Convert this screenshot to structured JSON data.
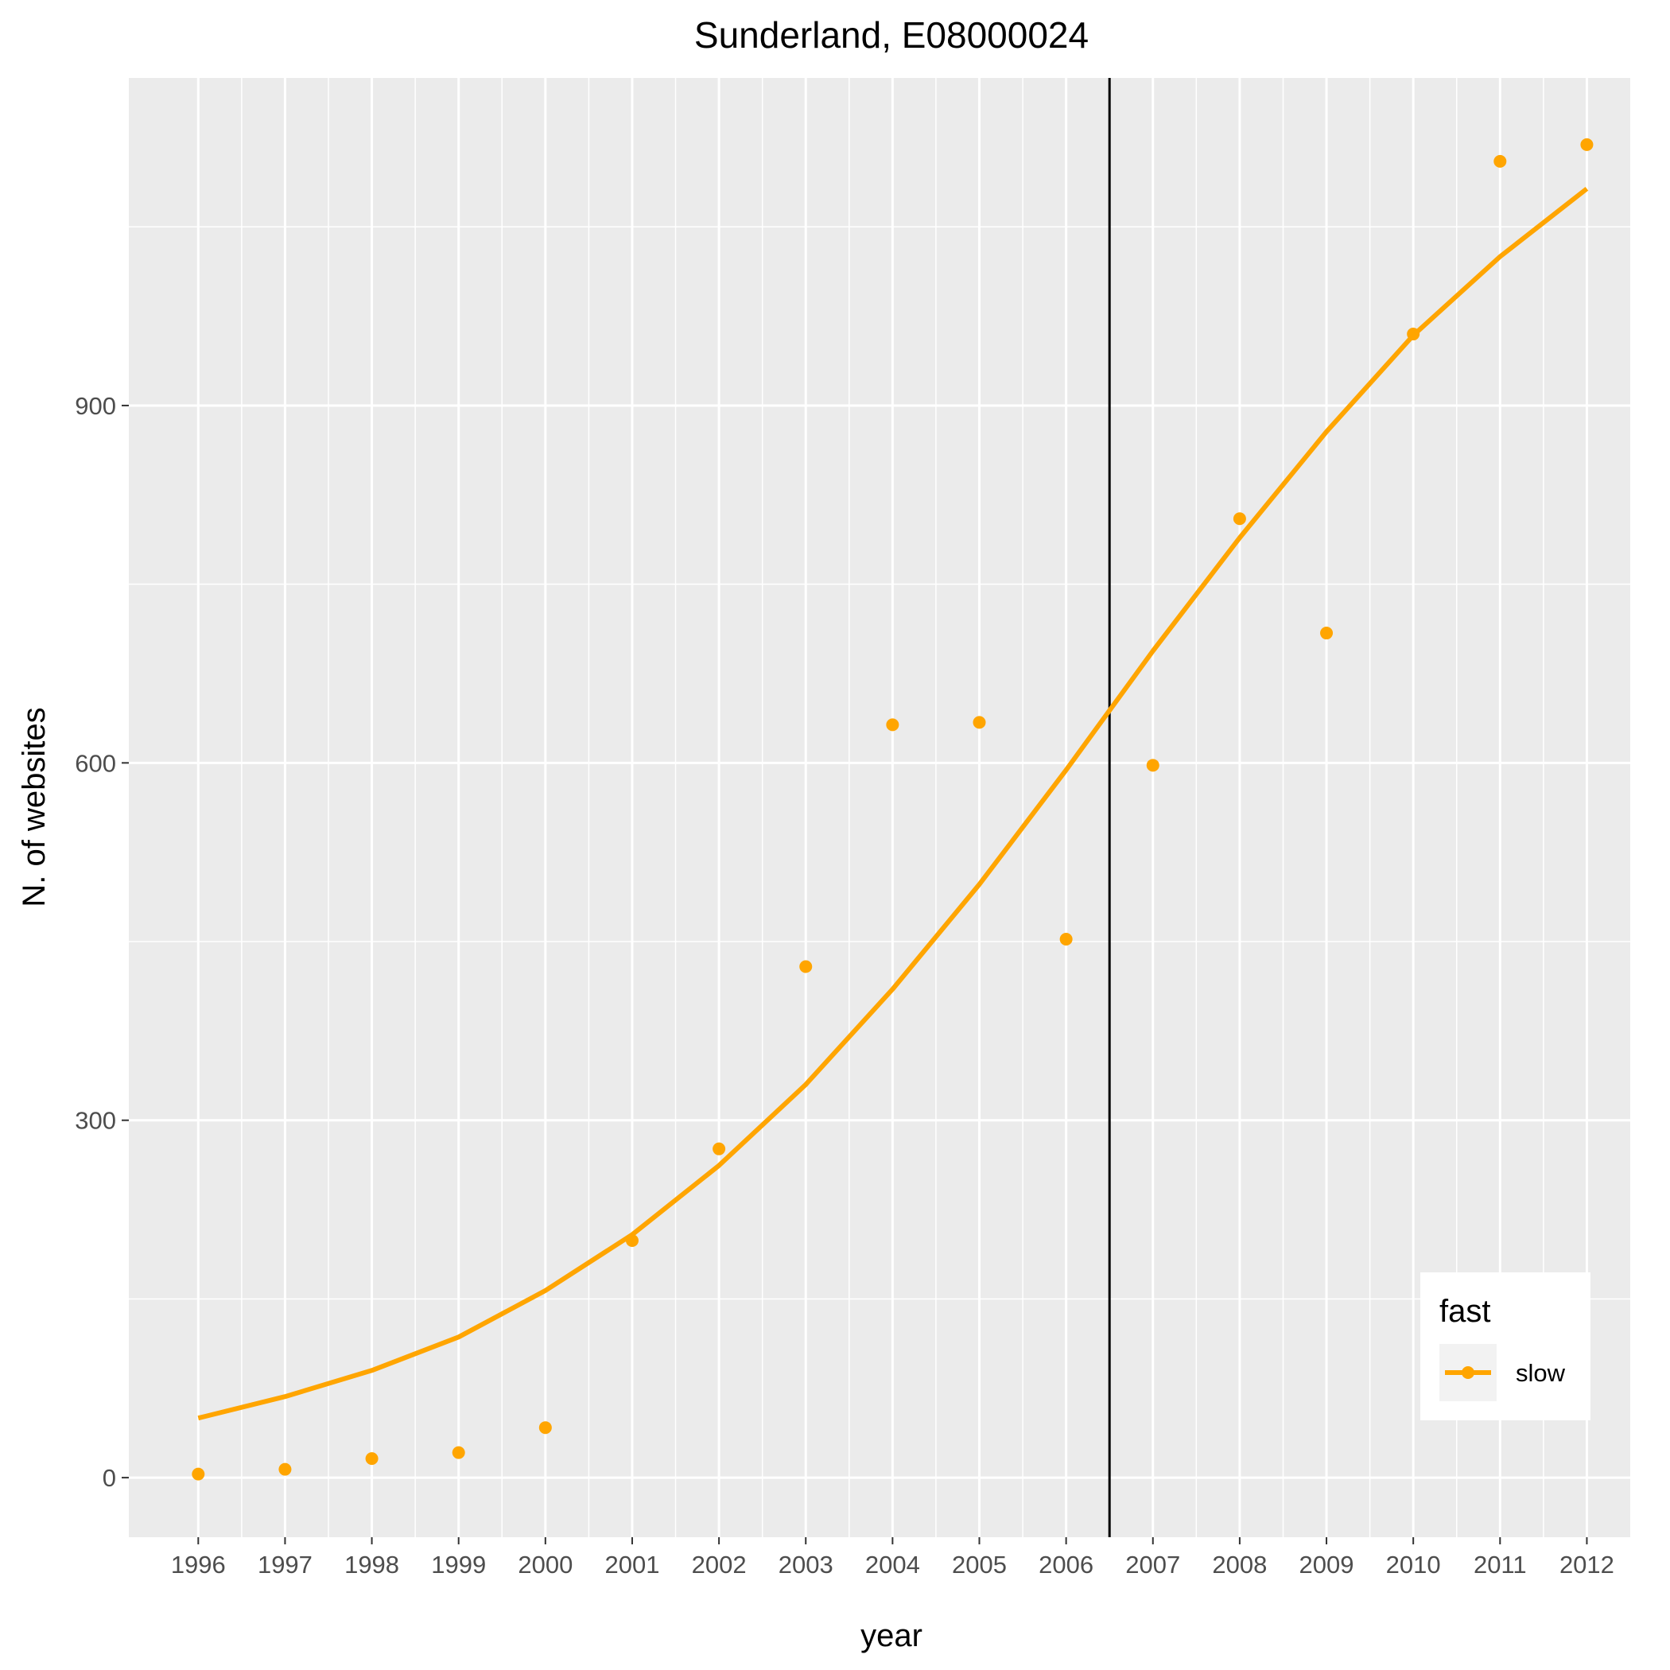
{
  "chart_data": {
    "type": "line",
    "title": "Sunderland, E08000024",
    "xlabel": "year",
    "ylabel": "N. of websites",
    "x": [
      1996,
      1997,
      1998,
      1999,
      2000,
      2001,
      2002,
      2003,
      2004,
      2005,
      2006,
      2007,
      2008,
      2009,
      2010,
      2011,
      2012
    ],
    "x_tick_labels": [
      "1996",
      "1997",
      "1998",
      "1999",
      "2000",
      "2001",
      "2002",
      "2003",
      "2004",
      "2005",
      "2006",
      "2007",
      "2008",
      "2009",
      "2010",
      "2011",
      "2012"
    ],
    "y_ticks": [
      0,
      300,
      600,
      900
    ],
    "y_tick_labels": [
      "0",
      "300",
      "600",
      "900"
    ],
    "xlim": [
      1995.2,
      2012.5
    ],
    "ylim": [
      -50,
      1175
    ],
    "grid": true,
    "series": [
      {
        "name": "slow",
        "color": "#FFA500",
        "points": [
          3,
          7,
          16,
          21,
          42,
          199,
          276,
          429,
          632,
          634,
          452,
          598,
          805,
          709,
          960,
          1105,
          1119
        ],
        "smooth": [
          50,
          68,
          90,
          118,
          157,
          204,
          262,
          330,
          410,
          498,
          594,
          694,
          789,
          878,
          959,
          1025,
          1082
        ]
      }
    ],
    "vline_x": 2006.5,
    "vline_color": "#000000",
    "legend": {
      "title": "fast",
      "position": "bottom-right",
      "items": [
        {
          "label": "slow",
          "color": "#FFA500"
        }
      ]
    }
  }
}
